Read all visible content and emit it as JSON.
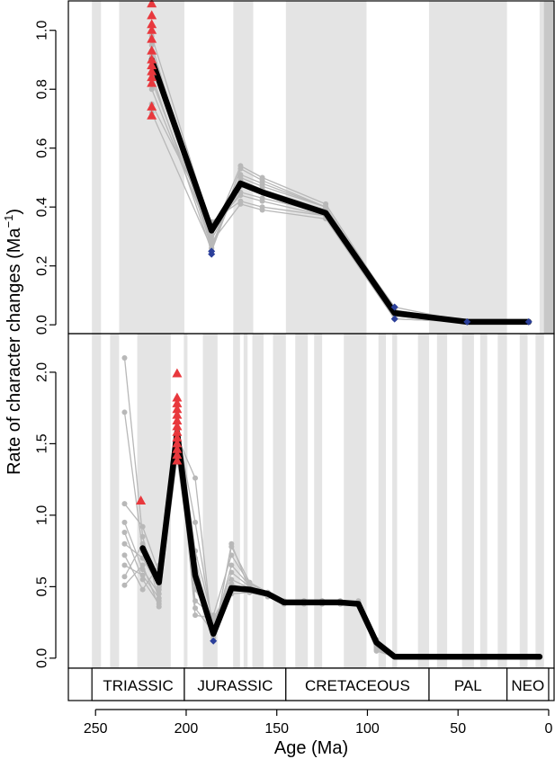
{
  "figure": {
    "xlabel": "Age (Ma)",
    "ylabel_main": "Rate of character changes (Ma",
    "ylabel_sup": "−1",
    "ylabel_close": ")"
  },
  "chart_data": [
    {
      "type": "line",
      "panel": "top",
      "xlim": [
        265,
        -3
      ],
      "ylim": [
        -0.03,
        1.1
      ],
      "yticks": [
        0.0,
        0.2,
        0.4,
        0.6,
        0.8,
        1.0
      ],
      "ytick_labels": [
        "0.0",
        "0.2",
        "0.4",
        "0.6",
        "0.8",
        "1.0"
      ],
      "mean_series": {
        "x": [
          219,
          186,
          170,
          158,
          123,
          85,
          45,
          11
        ],
        "y": [
          0.9,
          0.32,
          0.48,
          0.45,
          0.38,
          0.04,
          0.01,
          0.01
        ]
      },
      "replicates": {
        "x": [
          219,
          186,
          170,
          158,
          123,
          85,
          45,
          11
        ],
        "rows": [
          [
            0.91,
            0.26,
            0.53,
            0.49,
            0.4,
            0.04,
            0.01,
            0.01
          ],
          [
            0.85,
            0.25,
            0.51,
            0.48,
            0.4,
            0.03,
            0.01,
            0.01
          ],
          [
            0.95,
            0.27,
            0.49,
            0.46,
            0.39,
            0.06,
            0.01,
            0.01
          ],
          [
            0.8,
            0.29,
            0.47,
            0.45,
            0.39,
            0.05,
            0.01,
            0.01
          ],
          [
            0.88,
            0.31,
            0.45,
            0.43,
            0.38,
            0.02,
            0.01,
            0.01
          ],
          [
            0.98,
            0.33,
            0.44,
            0.42,
            0.37,
            0.04,
            0.01,
            0.01
          ],
          [
            0.75,
            0.35,
            0.42,
            0.4,
            0.37,
            0.03,
            0.01,
            0.01
          ],
          [
            0.83,
            0.3,
            0.54,
            0.5,
            0.41,
            0.05,
            0.01,
            0.01
          ],
          [
            0.93,
            0.28,
            0.41,
            0.39,
            0.36,
            0.02,
            0.01,
            0.01
          ],
          [
            0.72,
            0.26,
            0.5,
            0.47,
            0.4,
            0.04,
            0.01,
            0.01
          ]
        ]
      },
      "high_points": {
        "x": 219,
        "y": [
          1.09,
          1.05,
          1.02,
          1.0,
          0.97,
          0.93,
          0.9,
          0.88,
          0.86,
          0.84,
          0.82,
          0.74,
          0.71
        ]
      },
      "low_points": [
        {
          "x": 186,
          "y": 0.24
        },
        {
          "x": 186,
          "y": 0.25
        },
        {
          "x": 85,
          "y": 0.06
        },
        {
          "x": 85,
          "y": 0.02
        },
        {
          "x": 45,
          "y": 0.01
        },
        {
          "x": 11,
          "y": 0.01
        }
      ],
      "band_colors": {
        "grey": "#e4e4e4",
        "dark": "#c8c8c8"
      }
    },
    {
      "type": "line",
      "panel": "bottom",
      "xlim": [
        265,
        -3
      ],
      "ylim": [
        -0.07,
        2.27
      ],
      "yticks": [
        0.0,
        0.5,
        1.0,
        1.5,
        2.0
      ],
      "ytick_labels": [
        "0.0",
        "0.5",
        "1.0",
        "1.5",
        "2.0"
      ],
      "mean_series": {
        "x": [
          224,
          215,
          205,
          195,
          185,
          175,
          165,
          155,
          146,
          135,
          125,
          115,
          105,
          95,
          85,
          75,
          65,
          55,
          45,
          35,
          25,
          15,
          5
        ],
        "y": [
          0.77,
          0.53,
          1.58,
          0.58,
          0.17,
          0.49,
          0.48,
          0.45,
          0.39,
          0.39,
          0.39,
          0.39,
          0.38,
          0.11,
          0.01,
          0.01,
          0.01,
          0.01,
          0.01,
          0.01,
          0.01,
          0.01,
          0.01
        ]
      },
      "replicates": {
        "x": [
          234,
          224,
          215,
          205,
          195,
          185,
          175,
          165,
          155,
          146,
          135,
          125,
          115,
          105,
          95,
          85
        ],
        "rows": [
          [
            2.1,
            0.85,
            0.4,
            1.55,
            1.26,
            0.12,
            0.8,
            0.48,
            0.44,
            0.4,
            0.4,
            0.4,
            0.4,
            0.4,
            0.12,
            0.01
          ],
          [
            1.72,
            0.75,
            0.55,
            1.62,
            0.95,
            0.2,
            0.6,
            0.5,
            0.45,
            0.39,
            0.39,
            0.39,
            0.39,
            0.39,
            0.05,
            0.01
          ],
          [
            1.08,
            0.92,
            0.6,
            1.7,
            0.75,
            0.25,
            0.52,
            0.47,
            0.44,
            0.38,
            0.38,
            0.38,
            0.38,
            0.38,
            0.1,
            0.01
          ],
          [
            0.95,
            0.62,
            0.45,
            1.45,
            0.55,
            0.15,
            0.45,
            0.46,
            0.43,
            0.39,
            0.39,
            0.39,
            0.39,
            0.38,
            0.08,
            0.01
          ],
          [
            0.88,
            0.55,
            0.38,
            1.5,
            0.4,
            0.3,
            0.72,
            0.52,
            0.46,
            0.39,
            0.39,
            0.39,
            0.39,
            0.39,
            0.13,
            0.01
          ],
          [
            0.8,
            0.7,
            0.5,
            1.65,
            0.62,
            0.22,
            0.55,
            0.49,
            0.45,
            0.39,
            0.39,
            0.39,
            0.39,
            0.39,
            0.09,
            0.01
          ],
          [
            0.72,
            0.48,
            0.65,
            1.58,
            0.35,
            0.18,
            0.65,
            0.51,
            0.44,
            0.4,
            0.4,
            0.4,
            0.4,
            0.39,
            0.07,
            0.01
          ],
          [
            0.65,
            0.58,
            0.42,
            1.4,
            0.48,
            0.26,
            0.47,
            0.48,
            0.45,
            0.38,
            0.38,
            0.38,
            0.38,
            0.38,
            0.11,
            0.01
          ],
          [
            0.57,
            0.8,
            0.48,
            1.52,
            0.7,
            0.14,
            0.78,
            0.53,
            0.46,
            0.39,
            0.39,
            0.39,
            0.39,
            0.39,
            0.06,
            0.01
          ],
          [
            0.51,
            0.65,
            0.36,
            1.6,
            0.3,
            0.28,
            0.5,
            0.46,
            0.43,
            0.38,
            0.38,
            0.38,
            0.38,
            0.38,
            0.12,
            0.01
          ]
        ]
      },
      "high_points": [
        {
          "x": 225,
          "y": 1.1
        },
        {
          "x": 205,
          "y": 1.99
        },
        {
          "x": 205,
          "y": 1.82
        },
        {
          "x": 205,
          "y": 1.78
        },
        {
          "x": 205,
          "y": 1.74
        },
        {
          "x": 205,
          "y": 1.7
        },
        {
          "x": 205,
          "y": 1.66
        },
        {
          "x": 205,
          "y": 1.62
        },
        {
          "x": 205,
          "y": 1.58
        },
        {
          "x": 205,
          "y": 1.54
        },
        {
          "x": 205,
          "y": 1.5
        },
        {
          "x": 205,
          "y": 1.46
        },
        {
          "x": 205,
          "y": 1.42
        },
        {
          "x": 205,
          "y": 1.38
        }
      ],
      "low_points": [
        {
          "x": 185,
          "y": 0.12
        }
      ]
    }
  ],
  "periods": [
    {
      "label": "TRIASSIC",
      "from": 252,
      "to": 201
    },
    {
      "label": "JURASSIC",
      "from": 201,
      "to": 145
    },
    {
      "label": "CRETACEOUS",
      "from": 145,
      "to": 66
    },
    {
      "label": "PAL",
      "from": 66,
      "to": 23
    },
    {
      "label": "NEO",
      "from": 23,
      "to": 0
    }
  ],
  "xaxis": {
    "ticks": [
      250,
      200,
      150,
      100,
      50,
      0
    ],
    "tick_labels": [
      "250",
      "200",
      "150",
      "100",
      "50",
      "0"
    ]
  },
  "colors": {
    "mean_line": "#000000",
    "replicate": "#b8b8b8",
    "high": "#e8383d",
    "low": "#2b3f9a"
  }
}
